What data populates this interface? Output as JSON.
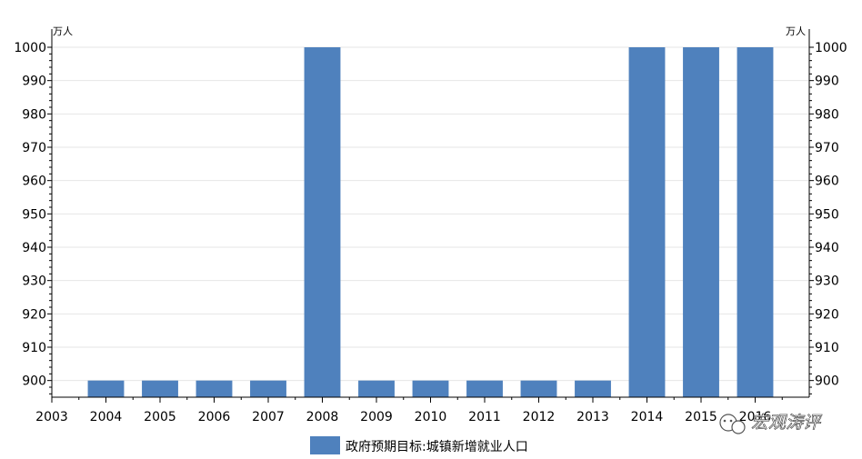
{
  "chart_data": {
    "type": "bar",
    "categories": [
      "2004",
      "2005",
      "2006",
      "2007",
      "2008",
      "2009",
      "2010",
      "2011",
      "2012",
      "2013",
      "2014",
      "2015",
      "2016"
    ],
    "x_start_label": "2003",
    "series": [
      {
        "name": "政府预期目标:城镇新增就业人口",
        "values": [
          900,
          900,
          900,
          900,
          1000,
          900,
          900,
          900,
          900,
          900,
          1000,
          1000,
          1000
        ],
        "color": "#4f81bd"
      }
    ],
    "y_unit_left": "万人",
    "y_unit_right": "万人",
    "ylim": [
      895,
      1000
    ],
    "y_ticks": [
      900,
      910,
      920,
      930,
      940,
      950,
      960,
      970,
      980,
      990,
      1000
    ],
    "grid": true,
    "legend_position": "bottom"
  },
  "watermark": {
    "text": "宏观涛评",
    "icon": "wechat-icon"
  }
}
